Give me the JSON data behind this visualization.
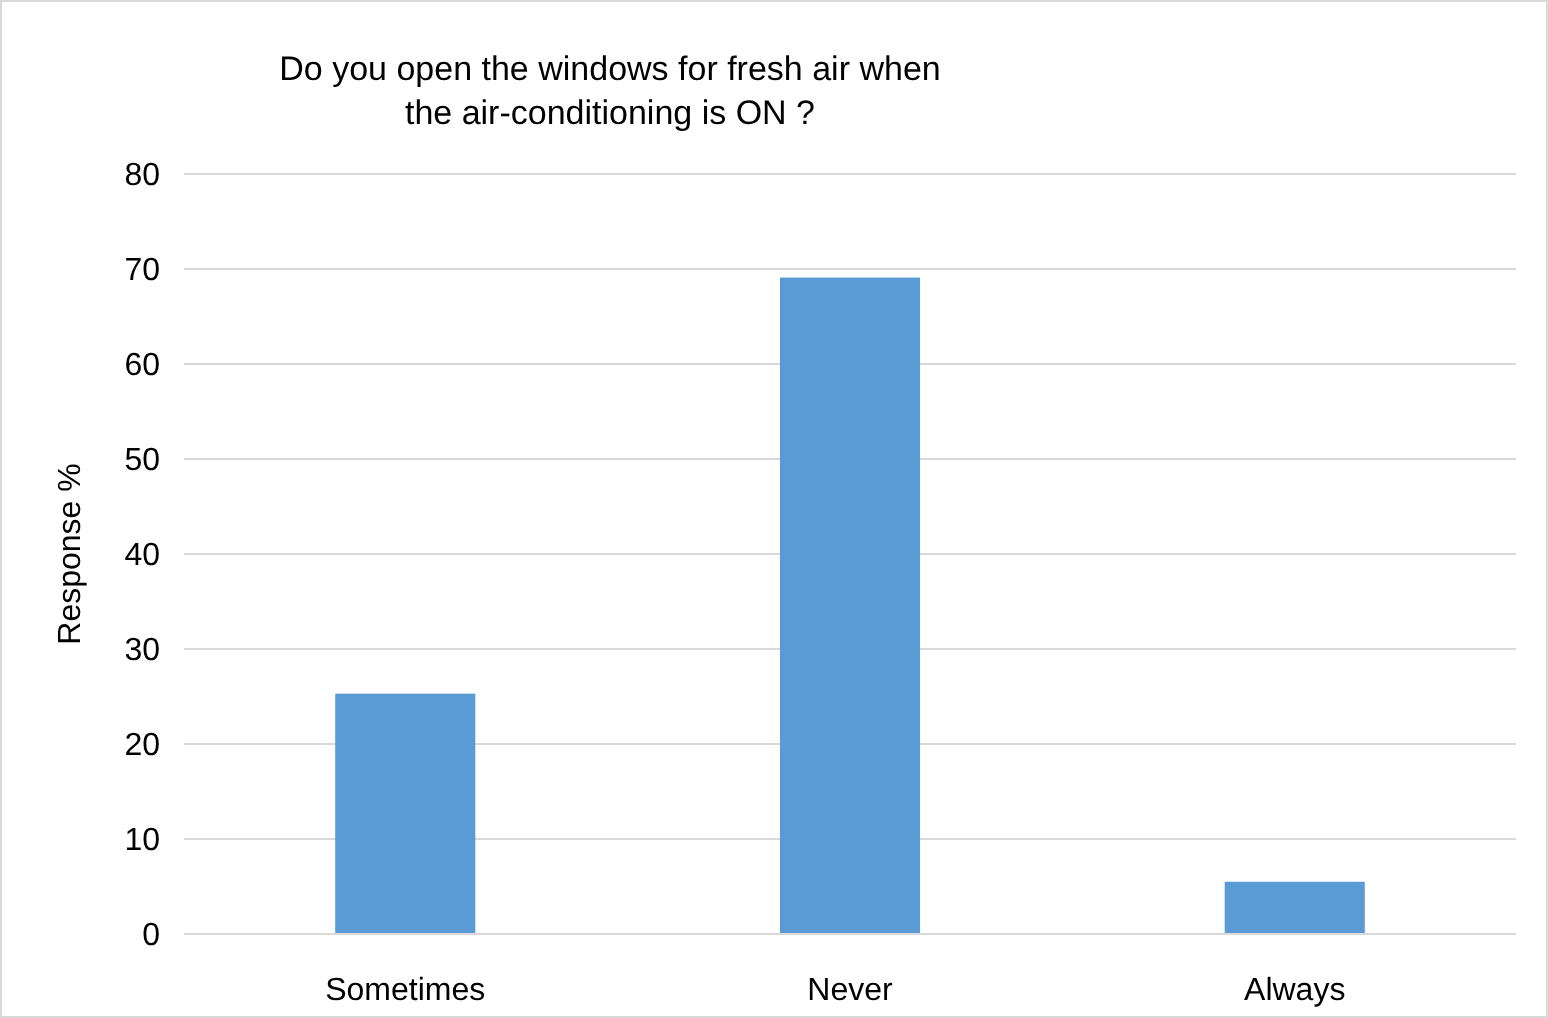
{
  "chart_data": {
    "type": "bar",
    "title": "Do you open the windows for fresh air when the air-conditioning is ON ?",
    "ylabel": "Response %",
    "categories": [
      "Sometimes",
      "Never",
      "Always"
    ],
    "values": [
      25.3,
      69.1,
      5.5
    ],
    "color": "#5b9bd5",
    "ylim": [
      0,
      80
    ],
    "yticks": [
      0,
      10,
      20,
      30,
      40,
      50,
      60,
      70,
      80
    ],
    "grid": "y"
  }
}
